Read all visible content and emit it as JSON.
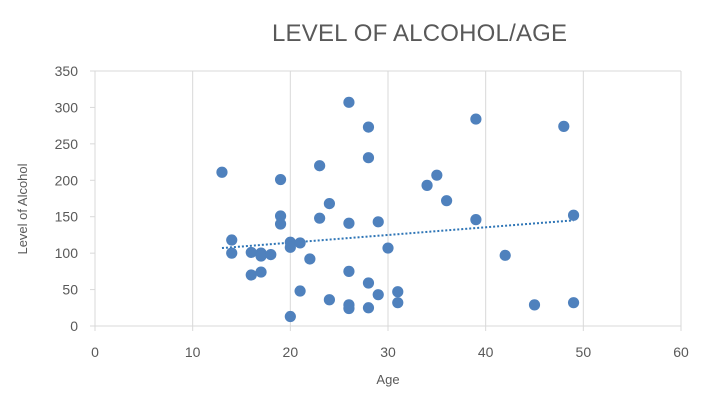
{
  "chart_data": {
    "type": "scatter",
    "title": "LEVEL OF ALCOHOL/AGE",
    "xlabel": "Age",
    "ylabel": "Level of Alcohol",
    "xlim": [
      0,
      60
    ],
    "ylim": [
      0,
      350
    ],
    "xticks": [
      0,
      10,
      20,
      30,
      40,
      50,
      60
    ],
    "yticks": [
      0,
      50,
      100,
      150,
      200,
      250,
      300,
      350
    ],
    "grid": "vertical",
    "legend": "none",
    "marker_color": "#4F81BD",
    "trendline": {
      "type": "linear",
      "style": "dotted",
      "color": "#2E75B6",
      "x": [
        13,
        49
      ],
      "y": [
        107,
        145
      ]
    },
    "points": [
      {
        "x": 13,
        "y": 211
      },
      {
        "x": 14,
        "y": 118
      },
      {
        "x": 14,
        "y": 100
      },
      {
        "x": 16,
        "y": 101
      },
      {
        "x": 16,
        "y": 70
      },
      {
        "x": 17,
        "y": 100
      },
      {
        "x": 17,
        "y": 96
      },
      {
        "x": 17,
        "y": 74
      },
      {
        "x": 18,
        "y": 98
      },
      {
        "x": 19,
        "y": 201
      },
      {
        "x": 19,
        "y": 151
      },
      {
        "x": 19,
        "y": 140
      },
      {
        "x": 20,
        "y": 115
      },
      {
        "x": 20,
        "y": 108
      },
      {
        "x": 20,
        "y": 13
      },
      {
        "x": 21,
        "y": 114
      },
      {
        "x": 21,
        "y": 48
      },
      {
        "x": 22,
        "y": 92
      },
      {
        "x": 23,
        "y": 220
      },
      {
        "x": 23,
        "y": 148
      },
      {
        "x": 24,
        "y": 168
      },
      {
        "x": 24,
        "y": 36
      },
      {
        "x": 26,
        "y": 307
      },
      {
        "x": 26,
        "y": 141
      },
      {
        "x": 26,
        "y": 75
      },
      {
        "x": 26,
        "y": 29
      },
      {
        "x": 26,
        "y": 24
      },
      {
        "x": 28,
        "y": 273
      },
      {
        "x": 28,
        "y": 231
      },
      {
        "x": 28,
        "y": 59
      },
      {
        "x": 28,
        "y": 25
      },
      {
        "x": 29,
        "y": 143
      },
      {
        "x": 29,
        "y": 43
      },
      {
        "x": 30,
        "y": 107
      },
      {
        "x": 31,
        "y": 47
      },
      {
        "x": 31,
        "y": 32
      },
      {
        "x": 34,
        "y": 193
      },
      {
        "x": 35,
        "y": 207
      },
      {
        "x": 36,
        "y": 172
      },
      {
        "x": 39,
        "y": 284
      },
      {
        "x": 39,
        "y": 146
      },
      {
        "x": 42,
        "y": 97
      },
      {
        "x": 45,
        "y": 29
      },
      {
        "x": 48,
        "y": 274
      },
      {
        "x": 49,
        "y": 152
      },
      {
        "x": 49,
        "y": 32
      }
    ]
  }
}
